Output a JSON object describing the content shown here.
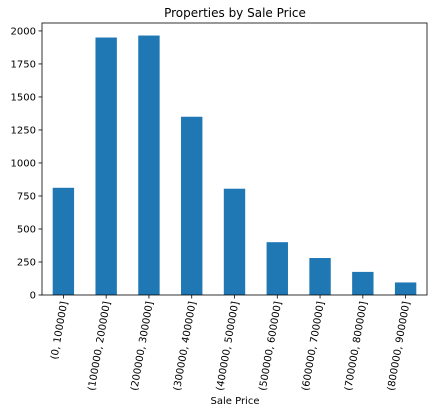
{
  "chart_data": {
    "type": "bar",
    "title": "Properties by Sale Price",
    "xlabel": "Sale Price",
    "ylabel": "",
    "ylim": [
      0,
      2060
    ],
    "yticks": [
      0,
      250,
      500,
      750,
      1000,
      1250,
      1500,
      1750,
      2000
    ],
    "categories": [
      "(0, 100000]",
      "(100000, 200000]",
      "(200000, 300000]",
      "(300000, 400000]",
      "(400000, 500000]",
      "(500000, 600000]",
      "(600000, 700000]",
      "(700000, 800000]",
      "(800000, 900000]"
    ],
    "values": [
      812,
      1950,
      1965,
      1350,
      805,
      400,
      280,
      175,
      95
    ],
    "bar_color": "#1f77b4",
    "grid": false,
    "legend": "none"
  }
}
